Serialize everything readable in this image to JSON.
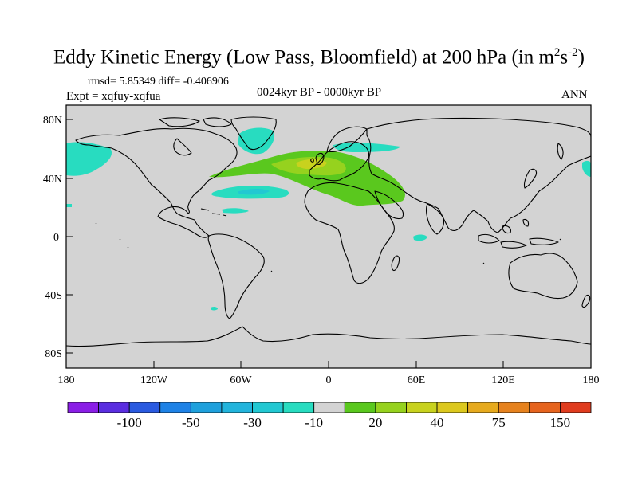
{
  "title": {
    "main": "Eddy Kinetic Energy (Low Pass, Bloomfield) at 200 hPa (in m",
    "sup1": "2",
    "mid": "s",
    "sup2": "-2",
    "end": ")"
  },
  "stats": "rmsd= 5.85349 diff= -0.406906",
  "expt": "Expt = xqfuy-xqfua",
  "period": "0024kyr BP - 0000kyr BP",
  "season": "ANN",
  "map": {
    "lat_ticks": [
      "80N",
      "40N",
      "0",
      "40S",
      "80S"
    ],
    "lon_ticks": [
      "180",
      "120W",
      "60W",
      "0",
      "60E",
      "120E",
      "180"
    ],
    "background_color": "#d3d3d3"
  },
  "colorbar": {
    "colors": [
      "#8a1ee6",
      "#5a2ee0",
      "#2a5ae0",
      "#1e82e6",
      "#1ea0dc",
      "#22b4dc",
      "#22c8d2",
      "#28dcc0",
      "#d3d3d3",
      "#5ac81e",
      "#96d21e",
      "#c8d21e",
      "#dcc81e",
      "#e6aa1e",
      "#e6821e",
      "#e6641e",
      "#e03c1e"
    ],
    "labels": [
      "-100",
      "-50",
      "-30",
      "-10",
      "20",
      "40",
      "75",
      "150"
    ]
  }
}
